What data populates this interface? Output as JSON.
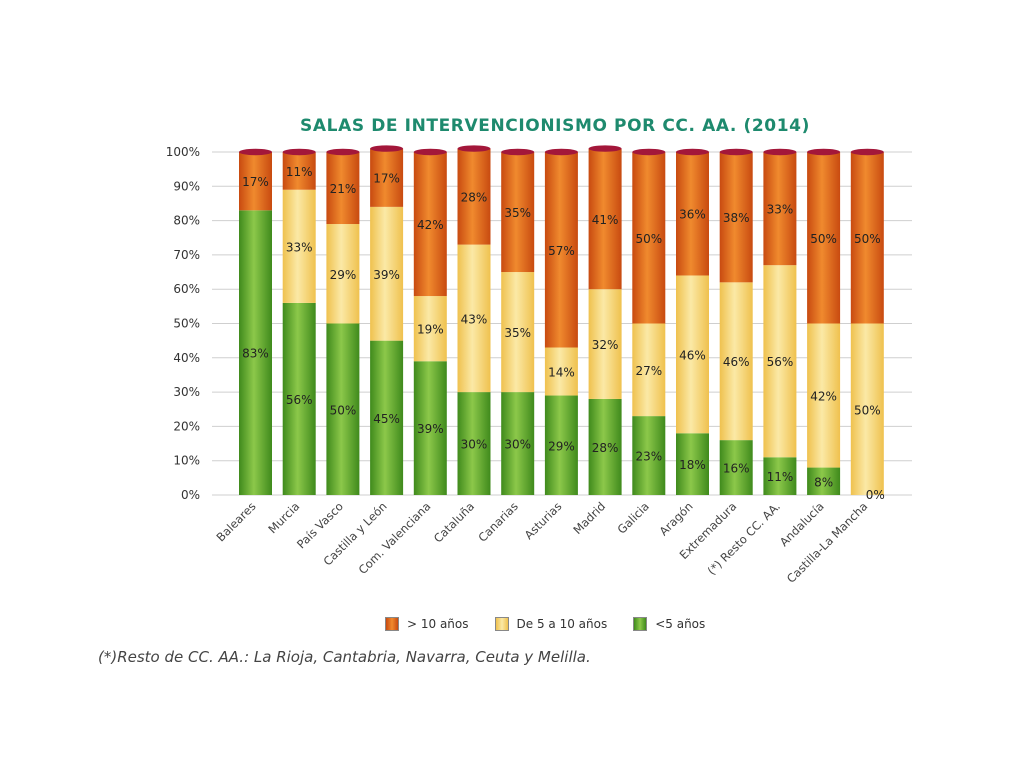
{
  "chart_data": {
    "type": "bar",
    "stacked": true,
    "title": "SALAS DE INTERVENCIONISMO POR CC. AA. (2014)",
    "xlabel": "",
    "ylabel": "",
    "ylim": [
      0,
      100
    ],
    "y_ticks": [
      "0%",
      "10%",
      "20%",
      "30%",
      "40%",
      "50%",
      "60%",
      "70%",
      "80%",
      "90%",
      "100%"
    ],
    "grid": true,
    "legend_position": "bottom",
    "categories": [
      "Baleares",
      "Murcia",
      "País Vasco",
      "Castilla y León",
      "Com. Valenciana",
      "Cataluña",
      "Canarias",
      "Asturias",
      "Madrid",
      "Galicia",
      "Aragón",
      "Extremadura",
      "(*) Resto CC. AA.",
      "Andalucía",
      "Castilla-La Mancha"
    ],
    "series": [
      {
        "name": "<5 años",
        "color": "#5ea82e",
        "values": [
          83,
          56,
          50,
          45,
          39,
          30,
          30,
          29,
          28,
          23,
          18,
          16,
          11,
          8,
          0
        ],
        "labels": [
          "83%",
          "56%",
          "50%",
          "45%",
          "39%",
          "30%",
          "30%",
          "29%",
          "28%",
          "23%",
          "18%",
          "16%",
          "11%",
          "8%",
          "0%"
        ]
      },
      {
        "name": "De 5 a 10 años",
        "color": "#f5d46e",
        "values": [
          0,
          33,
          29,
          39,
          19,
          43,
          35,
          14,
          32,
          27,
          46,
          46,
          56,
          42,
          50
        ],
        "labels": [
          "",
          "33%",
          "29%",
          "39%",
          "19%",
          "43%",
          "35%",
          "14%",
          "32%",
          "27%",
          "46%",
          "46%",
          "56%",
          "42%",
          "50%"
        ]
      },
      {
        "name": "> 10 años",
        "color": "#e3661c",
        "values": [
          17,
          11,
          21,
          17,
          42,
          28,
          35,
          57,
          41,
          50,
          36,
          38,
          33,
          50,
          50
        ],
        "labels": [
          "17%",
          "11%",
          "21%",
          "17%",
          "42%",
          "28%",
          "35%",
          "57%",
          "41%",
          "50%",
          "36%",
          "38%",
          "33%",
          "50%",
          "50%"
        ]
      }
    ],
    "footnote": "(*)Resto de CC. AA.: La Rioja, Cantabria, Navarra, Ceuta y Melilla."
  }
}
